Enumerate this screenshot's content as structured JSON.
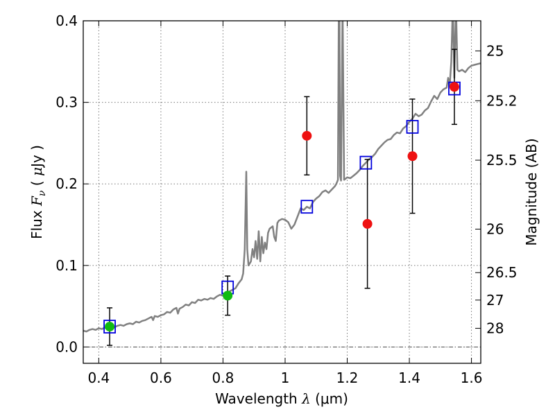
{
  "chart_data": {
    "type": "scatter",
    "xlabel": "Wavelength  λ (μm)",
    "xlabel_parts": {
      "pre": "Wavelength  ",
      "sym": "λ",
      "post": " (μm)"
    },
    "ylabel": "Flux  Fν  ( μJy )",
    "ylabel_parts": {
      "pre": "Flux  ",
      "sym": "F",
      "sub": "ν",
      "mid": "  ( ",
      "mu": "μ",
      "post": "Jy )"
    },
    "ylabel_right": "Magnitude (AB)",
    "xlim": [
      0.35,
      1.63
    ],
    "ylim": [
      -0.02,
      0.4
    ],
    "x_ticks": [
      {
        "value": 0.4,
        "label": "0.4"
      },
      {
        "value": 0.6,
        "label": "0.6"
      },
      {
        "value": 0.8,
        "label": "0.8"
      },
      {
        "value": 1.0,
        "label": "1"
      },
      {
        "value": 1.2,
        "label": "1.2"
      },
      {
        "value": 1.4,
        "label": "1.4"
      },
      {
        "value": 1.6,
        "label": "1.6"
      }
    ],
    "y_ticks": [
      {
        "value": 0.0,
        "label": "0.0"
      },
      {
        "value": 0.1,
        "label": "0.1"
      },
      {
        "value": 0.2,
        "label": "0.2"
      },
      {
        "value": 0.3,
        "label": "0.3"
      },
      {
        "value": 0.4,
        "label": "0.4"
      }
    ],
    "mag_ticks": [
      {
        "value": 25,
        "label": "25"
      },
      {
        "value": 25.2,
        "label": "25.2"
      },
      {
        "value": 25.5,
        "label": "25.5"
      },
      {
        "value": 26,
        "label": "26"
      },
      {
        "value": 26.5,
        "label": "26.5"
      },
      {
        "value": 27,
        "label": "27"
      },
      {
        "value": 28,
        "label": "28"
      }
    ],
    "grid": true,
    "zero_line": true,
    "colors": {
      "model": "#808080",
      "model_fit": "#0000dd",
      "observed": "#ee1111",
      "observed_green": "#11bb11",
      "errorbar": "#000000",
      "grid": "#777777"
    },
    "series": [
      {
        "kind": "spectrum",
        "points": [
          [
            0.35,
            0.02
          ],
          [
            0.36,
            0.019
          ],
          [
            0.37,
            0.021
          ],
          [
            0.38,
            0.022
          ],
          [
            0.39,
            0.021
          ],
          [
            0.4,
            0.023
          ],
          [
            0.41,
            0.022
          ],
          [
            0.42,
            0.024
          ],
          [
            0.43,
            0.023
          ],
          [
            0.44,
            0.025
          ],
          [
            0.45,
            0.024
          ],
          [
            0.46,
            0.026
          ],
          [
            0.47,
            0.027
          ],
          [
            0.48,
            0.026
          ],
          [
            0.49,
            0.028
          ],
          [
            0.5,
            0.029
          ],
          [
            0.51,
            0.028
          ],
          [
            0.52,
            0.031
          ],
          [
            0.53,
            0.03
          ],
          [
            0.54,
            0.032
          ],
          [
            0.55,
            0.033
          ],
          [
            0.56,
            0.035
          ],
          [
            0.57,
            0.037
          ],
          [
            0.575,
            0.033
          ],
          [
            0.58,
            0.038
          ],
          [
            0.59,
            0.037
          ],
          [
            0.6,
            0.039
          ],
          [
            0.61,
            0.04
          ],
          [
            0.62,
            0.043
          ],
          [
            0.63,
            0.042
          ],
          [
            0.64,
            0.046
          ],
          [
            0.65,
            0.048
          ],
          [
            0.655,
            0.041
          ],
          [
            0.66,
            0.047
          ],
          [
            0.67,
            0.049
          ],
          [
            0.68,
            0.052
          ],
          [
            0.69,
            0.051
          ],
          [
            0.7,
            0.055
          ],
          [
            0.71,
            0.054
          ],
          [
            0.72,
            0.058
          ],
          [
            0.73,
            0.057
          ],
          [
            0.74,
            0.059
          ],
          [
            0.75,
            0.058
          ],
          [
            0.76,
            0.06
          ],
          [
            0.77,
            0.059
          ],
          [
            0.78,
            0.062
          ],
          [
            0.79,
            0.064
          ],
          [
            0.8,
            0.063
          ],
          [
            0.81,
            0.066
          ],
          [
            0.82,
            0.068
          ],
          [
            0.83,
            0.07
          ],
          [
            0.84,
            0.072
          ],
          [
            0.85,
            0.078
          ],
          [
            0.86,
            0.083
          ],
          [
            0.865,
            0.09
          ],
          [
            0.87,
            0.12
          ],
          [
            0.875,
            0.215
          ],
          [
            0.878,
            0.12
          ],
          [
            0.882,
            0.1
          ],
          [
            0.89,
            0.105
          ],
          [
            0.895,
            0.12
          ],
          [
            0.9,
            0.11
          ],
          [
            0.905,
            0.13
          ],
          [
            0.91,
            0.108
          ],
          [
            0.915,
            0.142
          ],
          [
            0.92,
            0.105
          ],
          [
            0.925,
            0.135
          ],
          [
            0.93,
            0.115
          ],
          [
            0.935,
            0.128
          ],
          [
            0.94,
            0.12
          ],
          [
            0.945,
            0.14
          ],
          [
            0.95,
            0.145
          ],
          [
            0.96,
            0.148
          ],
          [
            0.965,
            0.135
          ],
          [
            0.97,
            0.13
          ],
          [
            0.975,
            0.152
          ],
          [
            0.98,
            0.155
          ],
          [
            0.99,
            0.157
          ],
          [
            1.0,
            0.156
          ],
          [
            1.01,
            0.153
          ],
          [
            1.02,
            0.145
          ],
          [
            1.03,
            0.15
          ],
          [
            1.04,
            0.16
          ],
          [
            1.05,
            0.17
          ],
          [
            1.06,
            0.168
          ],
          [
            1.07,
            0.172
          ],
          [
            1.08,
            0.17
          ],
          [
            1.09,
            0.178
          ],
          [
            1.1,
            0.182
          ],
          [
            1.11,
            0.185
          ],
          [
            1.12,
            0.19
          ],
          [
            1.13,
            0.192
          ],
          [
            1.14,
            0.189
          ],
          [
            1.15,
            0.193
          ],
          [
            1.16,
            0.197
          ],
          [
            1.165,
            0.2
          ],
          [
            1.17,
            0.205
          ],
          [
            1.173,
            0.42
          ],
          [
            1.175,
            0.42
          ],
          [
            1.177,
            0.21
          ],
          [
            1.18,
            0.204
          ],
          [
            1.185,
            0.42
          ],
          [
            1.19,
            0.205
          ],
          [
            1.2,
            0.208
          ],
          [
            1.21,
            0.207
          ],
          [
            1.22,
            0.21
          ],
          [
            1.23,
            0.213
          ],
          [
            1.24,
            0.217
          ],
          [
            1.25,
            0.222
          ],
          [
            1.26,
            0.226
          ],
          [
            1.27,
            0.23
          ],
          [
            1.28,
            0.233
          ],
          [
            1.29,
            0.237
          ],
          [
            1.3,
            0.243
          ],
          [
            1.31,
            0.247
          ],
          [
            1.32,
            0.251
          ],
          [
            1.33,
            0.254
          ],
          [
            1.34,
            0.255
          ],
          [
            1.35,
            0.26
          ],
          [
            1.36,
            0.263
          ],
          [
            1.37,
            0.262
          ],
          [
            1.38,
            0.268
          ],
          [
            1.39,
            0.271
          ],
          [
            1.4,
            0.276
          ],
          [
            1.41,
            0.28
          ],
          [
            1.42,
            0.286
          ],
          [
            1.43,
            0.283
          ],
          [
            1.44,
            0.285
          ],
          [
            1.45,
            0.29
          ],
          [
            1.46,
            0.293
          ],
          [
            1.47,
            0.301
          ],
          [
            1.48,
            0.308
          ],
          [
            1.49,
            0.304
          ],
          [
            1.5,
            0.312
          ],
          [
            1.51,
            0.316
          ],
          [
            1.52,
            0.318
          ],
          [
            1.525,
            0.33
          ],
          [
            1.53,
            0.32
          ],
          [
            1.535,
            0.35
          ],
          [
            1.54,
            0.42
          ],
          [
            1.545,
            0.33
          ],
          [
            1.55,
            0.42
          ],
          [
            1.555,
            0.34
          ],
          [
            1.56,
            0.338
          ],
          [
            1.57,
            0.34
          ],
          [
            1.58,
            0.337
          ],
          [
            1.59,
            0.342
          ],
          [
            1.6,
            0.345
          ],
          [
            1.61,
            0.346
          ],
          [
            1.62,
            0.347
          ],
          [
            1.63,
            0.348
          ]
        ]
      },
      {
        "kind": "model_fit",
        "marker": "square",
        "points": [
          [
            0.435,
            0.025
          ],
          [
            0.815,
            0.073
          ],
          [
            1.07,
            0.172
          ],
          [
            1.26,
            0.226
          ],
          [
            1.41,
            0.27
          ],
          [
            1.545,
            0.317
          ]
        ]
      },
      {
        "kind": "observed",
        "marker": "circle",
        "points": [
          {
            "x": 0.435,
            "y": 0.025,
            "err": 0.023,
            "color": "green"
          },
          {
            "x": 0.815,
            "y": 0.063,
            "err": 0.024,
            "color": "green"
          },
          {
            "x": 1.07,
            "y": 0.259,
            "err": 0.048,
            "color": "red"
          },
          {
            "x": 1.265,
            "y": 0.151,
            "err": 0.079,
            "color": "red"
          },
          {
            "x": 1.41,
            "y": 0.234,
            "err": 0.07,
            "color": "red"
          },
          {
            "x": 1.545,
            "y": 0.319,
            "err": 0.046,
            "color": "red"
          }
        ]
      }
    ]
  }
}
